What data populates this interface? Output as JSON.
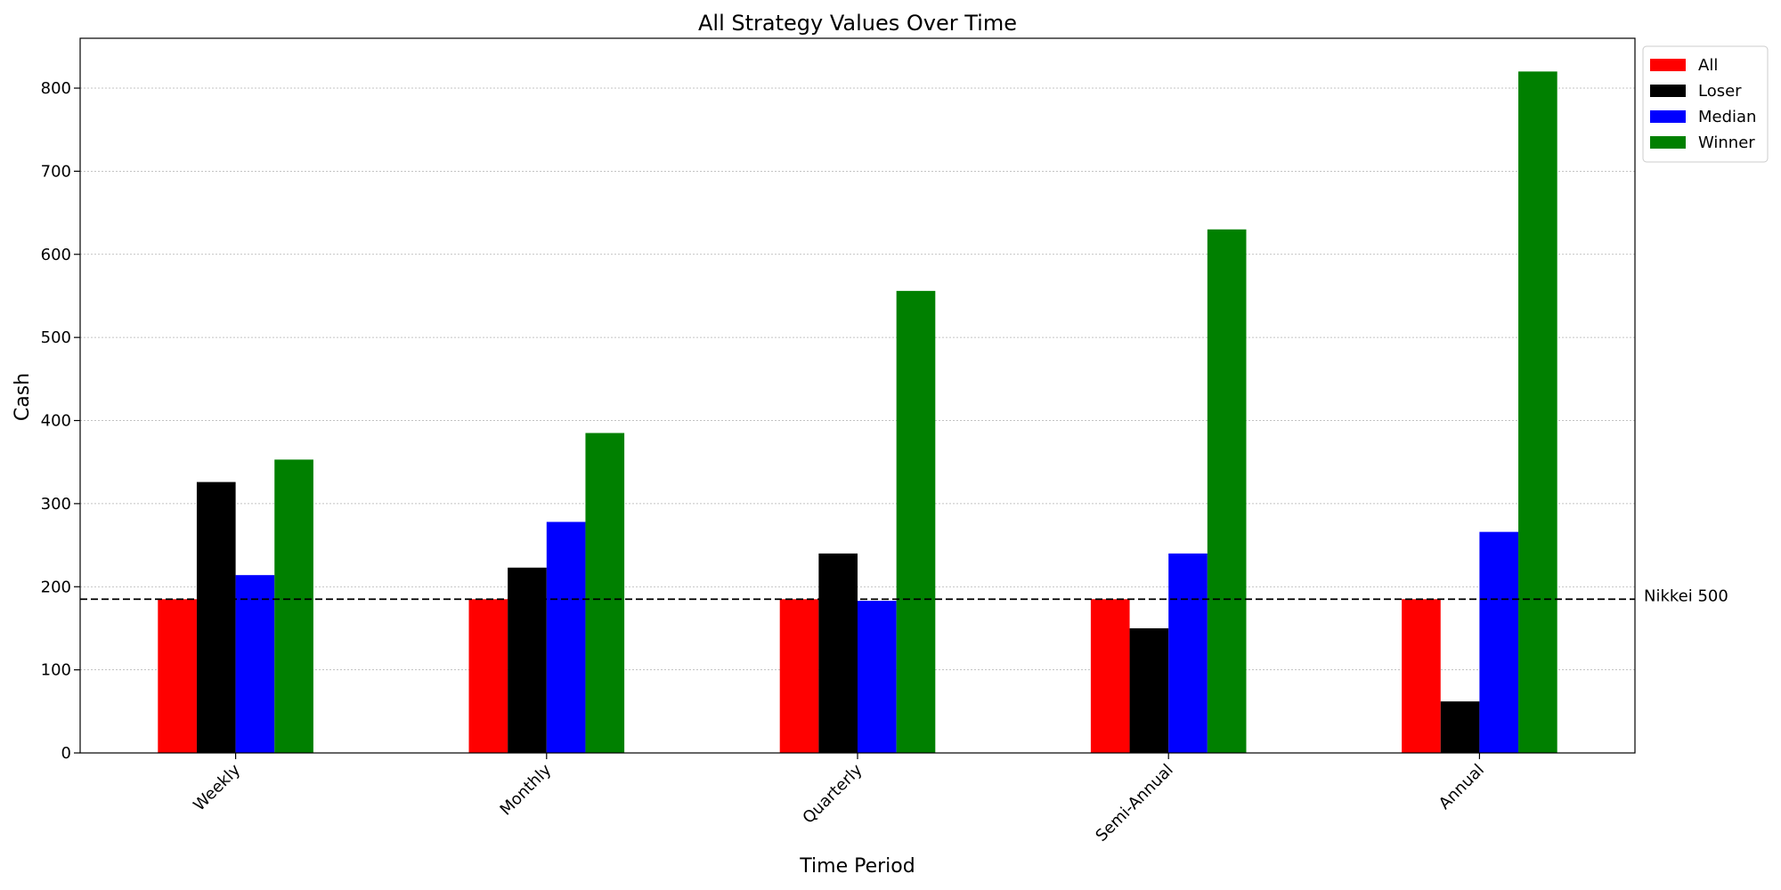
{
  "chart_data": {
    "type": "bar",
    "title": "All Strategy Values Over Time",
    "xlabel": "Time Period",
    "ylabel": "Cash",
    "categories": [
      "Weekly",
      "Monthly",
      "Quarterly",
      "Semi-Annual",
      "Annual"
    ],
    "series": [
      {
        "name": "All",
        "color": "#ff0000",
        "values": [
          185,
          185,
          185,
          185,
          185
        ]
      },
      {
        "name": "Loser",
        "color": "#000000",
        "values": [
          326,
          223,
          240,
          150,
          62
        ]
      },
      {
        "name": "Median",
        "color": "#0000ff",
        "values": [
          214,
          278,
          183,
          240,
          266
        ]
      },
      {
        "name": "Winner",
        "color": "#008000",
        "values": [
          353,
          385,
          556,
          630,
          820
        ]
      }
    ],
    "ylim": [
      0,
      860
    ],
    "yticks": [
      "0",
      "100",
      "200",
      "300",
      "400",
      "500",
      "600",
      "700",
      "800"
    ],
    "grid": "y-dotted",
    "legend_position": "top-right-outside",
    "reference_line": {
      "label": "Nikkei 500",
      "value": 185,
      "style": "dashed",
      "color": "#000000"
    }
  }
}
